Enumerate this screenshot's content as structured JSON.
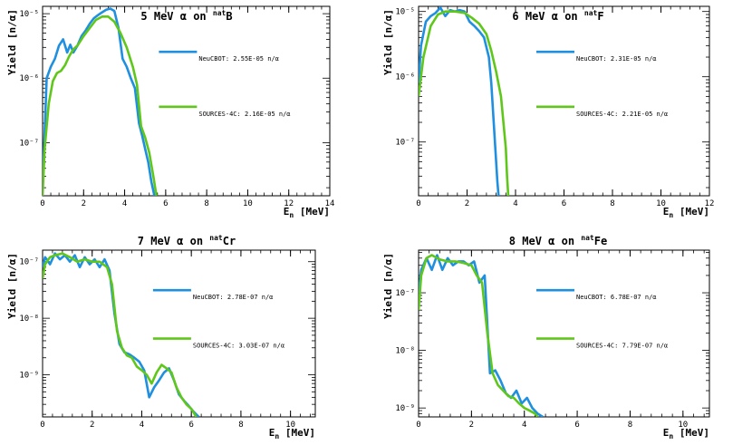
{
  "chart_data": [
    {
      "type": "line",
      "title": "5 MeV α on natB",
      "title_main": "5 MeV α on ",
      "title_sup": "nat",
      "title_el": "B",
      "xlabel": "E",
      "xlabel_sub": "n",
      "xlabel_unit": " [MeV]",
      "ylabel": "Yield [n/α]",
      "xlim": [
        0,
        14
      ],
      "ylim": [
        1.5e-08,
        1.3e-05
      ],
      "xticks": [
        0,
        2,
        4,
        6,
        8,
        10,
        12,
        14
      ],
      "yticks": [
        {
          "v": 1e-07,
          "label": "10⁻⁷"
        },
        {
          "v": 1e-06,
          "label": "10⁻⁶"
        },
        {
          "v": 1e-05,
          "label": "10⁻⁵"
        }
      ],
      "series": [
        {
          "name": "NeuCBOT",
          "label": "NeuCBOT: 2.55E-05 n/α",
          "color": "#1f8fe0",
          "x": [
            0,
            0.2,
            0.4,
            0.6,
            0.8,
            1.0,
            1.2,
            1.35,
            1.5,
            1.7,
            1.9,
            2.1,
            2.3,
            2.5,
            2.7,
            2.9,
            3.1,
            3.3,
            3.5,
            3.7,
            3.9,
            4.1,
            4.3,
            4.5,
            4.7,
            4.85,
            5.0,
            5.15,
            5.3,
            5.45
          ],
          "y": [
            2e-08,
            1e-06,
            1.5e-06,
            2e-06,
            3.2e-06,
            4e-06,
            2.5e-06,
            3.3e-06,
            2.5e-06,
            3.2e-06,
            4.5e-06,
            5.5e-06,
            7e-06,
            8.5e-06,
            9.5e-06,
            1.05e-05,
            1.15e-05,
            1.2e-05,
            1.1e-05,
            6e-06,
            2e-06,
            1.5e-06,
            1e-06,
            7e-07,
            2e-07,
            1.3e-07,
            8e-08,
            5e-08,
            2.5e-08,
            1.5e-08
          ]
        },
        {
          "name": "SOURCES-4C",
          "label": "SOURCES-4C: 2.16E-05 n/α",
          "color": "#5fc71a",
          "x": [
            0,
            0.1,
            0.3,
            0.5,
            0.7,
            0.9,
            1.1,
            1.3,
            1.5,
            1.7,
            2.0,
            2.3,
            2.6,
            2.9,
            3.2,
            3.5,
            3.8,
            4.1,
            4.4,
            4.6,
            4.8,
            5.0,
            5.2,
            5.4,
            5.55
          ],
          "y": [
            1.5e-08,
            8e-08,
            4e-07,
            9e-07,
            1.2e-06,
            1.3e-06,
            1.6e-06,
            2.2e-06,
            2.8e-06,
            3.2e-06,
            4.5e-06,
            6e-06,
            8e-06,
            9e-06,
            9e-06,
            7.5e-06,
            5e-06,
            3e-06,
            1.5e-06,
            8e-07,
            1.8e-07,
            1.2e-07,
            7e-08,
            3e-08,
            1.5e-08
          ]
        }
      ]
    },
    {
      "type": "line",
      "title": "6 MeV α on natF",
      "title_main": "6 MeV α on ",
      "title_sup": "nat",
      "title_el": "F",
      "xlabel": "E",
      "xlabel_sub": "n",
      "xlabel_unit": " [MeV]",
      "ylabel": "Yield [n/α]",
      "xlim": [
        0,
        12
      ],
      "ylim": [
        1.5e-08,
        1.2e-05
      ],
      "xticks": [
        0,
        2,
        4,
        6,
        8,
        10,
        12
      ],
      "yticks": [
        {
          "v": 1e-07,
          "label": "10⁻⁷"
        },
        {
          "v": 1e-06,
          "label": "10⁻⁶"
        },
        {
          "v": 1e-05,
          "label": "10⁻⁵"
        }
      ],
      "series": [
        {
          "name": "NeuCBOT",
          "label": "NeuCBOT: 2.31E-05 n/α",
          "color": "#1f8fe0",
          "x": [
            0,
            0.1,
            0.3,
            0.5,
            0.7,
            0.9,
            1.1,
            1.3,
            1.5,
            1.7,
            1.9,
            2.1,
            2.3,
            2.5,
            2.7,
            2.9,
            3.0,
            3.1,
            3.2,
            3.25,
            3.3
          ],
          "y": [
            8e-07,
            3e-06,
            7e-06,
            8.5e-06,
            9.5e-06,
            1.15e-05,
            8.5e-06,
            1.05e-05,
            1e-05,
            1.05e-05,
            1e-05,
            7e-06,
            6e-06,
            5e-06,
            4e-06,
            2e-06,
            8e-07,
            2e-07,
            5e-08,
            2.5e-08,
            1.5e-08
          ]
        },
        {
          "name": "SOURCES-4C",
          "label": "SOURCES-4C: 2.21E-05 n/α",
          "color": "#5fc71a",
          "x": [
            0,
            0.2,
            0.5,
            0.8,
            1.1,
            1.5,
            1.9,
            2.2,
            2.5,
            2.8,
            3.0,
            3.2,
            3.4,
            3.5,
            3.6,
            3.65,
            3.7
          ],
          "y": [
            5e-07,
            2e-06,
            6e-06,
            9e-06,
            1e-05,
            1e-05,
            9.5e-06,
            8e-06,
            6.5e-06,
            4.5e-06,
            2.5e-06,
            1.2e-06,
            5e-07,
            2e-07,
            8e-08,
            3e-08,
            1.5e-08
          ]
        }
      ]
    },
    {
      "type": "line",
      "title": "7 MeV α on natCr",
      "title_main": "7 MeV α on ",
      "title_sup": "nat",
      "title_el": "Cr",
      "xlabel": "E",
      "xlabel_sub": "n",
      "xlabel_unit": " [MeV]",
      "ylabel": "Yield [n/α]",
      "xlim": [
        0,
        11
      ],
      "ylim": [
        1.8e-10,
        1.6e-07
      ],
      "xticks": [
        0,
        2,
        4,
        6,
        8,
        10
      ],
      "yticks": [
        {
          "v": 1e-09,
          "label": "10⁻⁹"
        },
        {
          "v": 1e-08,
          "label": "10⁻⁸"
        },
        {
          "v": 1e-07,
          "label": "10⁻⁷"
        }
      ],
      "series": [
        {
          "name": "NeuCBOT",
          "label": "NeuCBOT: 2.78E-07 n/α",
          "color": "#1f8fe0",
          "x": [
            0,
            0.1,
            0.3,
            0.5,
            0.7,
            0.9,
            1.1,
            1.3,
            1.5,
            1.7,
            1.9,
            2.1,
            2.3,
            2.5,
            2.7,
            2.9,
            3.1,
            3.3,
            3.5,
            3.7,
            3.9,
            4.1,
            4.3,
            4.5,
            4.7,
            4.9,
            5.1,
            5.3,
            5.5,
            5.7,
            5.9,
            6.1,
            6.3
          ],
          "y": [
            8e-08,
            1.2e-07,
            9e-08,
            1.4e-07,
            1.1e-07,
            1.3e-07,
            1e-07,
            1.3e-07,
            8e-08,
            1.2e-07,
            9e-08,
            1.1e-07,
            8e-08,
            1.1e-07,
            7e-08,
            1.2e-08,
            3.5e-09,
            2.5e-09,
            2.3e-09,
            2e-09,
            1.7e-09,
            1.2e-09,
            4e-10,
            6e-10,
            8e-10,
            1.1e-09,
            1.3e-09,
            8e-10,
            4.5e-10,
            3.5e-10,
            2.8e-10,
            2.2e-10,
            1.8e-10
          ]
        },
        {
          "name": "SOURCES-4C",
          "label": "SOURCES-4C: 3.03E-07 n/α",
          "color": "#5fc71a",
          "x": [
            0,
            0.1,
            0.3,
            0.5,
            0.8,
            1.1,
            1.4,
            1.7,
            2.0,
            2.3,
            2.6,
            2.8,
            3.0,
            3.2,
            3.4,
            3.6,
            3.8,
            4.0,
            4.2,
            4.4,
            4.6,
            4.8,
            5.0,
            5.2,
            5.4,
            5.6,
            5.8,
            6.0,
            6.2
          ],
          "y": [
            5e-08,
            9e-08,
            1.2e-07,
            1.3e-07,
            1.4e-07,
            1.2e-07,
            1e-07,
            1.1e-07,
            1e-07,
            1e-07,
            8e-08,
            4e-08,
            6e-09,
            3e-09,
            2.2e-09,
            2e-09,
            1.4e-09,
            1.2e-09,
            1e-09,
            7e-10,
            1.1e-09,
            1.5e-09,
            1.3e-09,
            1.1e-09,
            6e-10,
            4e-10,
            3e-10,
            2.5e-10,
            1.8e-10
          ]
        }
      ]
    },
    {
      "type": "line",
      "title": "8 MeV α on natFe",
      "title_main": "8 MeV α on ",
      "title_sup": "nat",
      "title_el": "Fe",
      "xlabel": "E",
      "xlabel_sub": "n",
      "xlabel_unit": " [MeV]",
      "ylabel": "Yield [n/α]",
      "xlim": [
        0,
        11
      ],
      "ylim": [
        7e-10,
        5.5e-07
      ],
      "xticks": [
        0,
        2,
        4,
        6,
        8,
        10
      ],
      "yticks": [
        {
          "v": 1e-09,
          "label": "10⁻⁹"
        },
        {
          "v": 1e-08,
          "label": "10⁻⁸"
        },
        {
          "v": 1e-07,
          "label": "10⁻⁷"
        }
      ],
      "series": [
        {
          "name": "NeuCBOT",
          "label": "NeuCBOT: 6.78E-07 n/α",
          "color": "#1f8fe0",
          "x": [
            0,
            0.1,
            0.3,
            0.5,
            0.7,
            0.9,
            1.1,
            1.3,
            1.5,
            1.7,
            1.9,
            2.1,
            2.3,
            2.5,
            2.7,
            2.9,
            3.1,
            3.3,
            3.5,
            3.7,
            3.9,
            4.1,
            4.3,
            4.5,
            4.7
          ],
          "y": [
            1e-07,
            2.5e-07,
            4e-07,
            2.5e-07,
            4.5e-07,
            2.5e-07,
            4e-07,
            3e-07,
            3.5e-07,
            3.5e-07,
            3e-07,
            3.5e-07,
            1.5e-07,
            2e-07,
            4e-09,
            4.5e-09,
            3e-09,
            1.8e-09,
            1.5e-09,
            2e-09,
            1.2e-09,
            1.5e-09,
            1e-09,
            8e-10,
            7e-10
          ]
        },
        {
          "name": "SOURCES-4C",
          "label": "SOURCES-4C: 7.79E-07 n/α",
          "color": "#5fc71a",
          "x": [
            0,
            0.1,
            0.3,
            0.5,
            0.8,
            1.1,
            1.4,
            1.7,
            2.0,
            2.2,
            2.4,
            2.6,
            2.8,
            3.0,
            3.2,
            3.4,
            3.6,
            3.8,
            4.0,
            4.2,
            4.4,
            4.5
          ],
          "y": [
            5e-08,
            2e-07,
            4e-07,
            4.5e-07,
            3.8e-07,
            3.5e-07,
            3.5e-07,
            3.3e-07,
            3e-07,
            2e-07,
            1.5e-07,
            2e-08,
            4e-09,
            2.5e-09,
            2e-09,
            1.6e-09,
            1.5e-09,
            1.2e-09,
            1e-09,
            9e-10,
            8e-10,
            7e-10
          ]
        }
      ]
    }
  ]
}
